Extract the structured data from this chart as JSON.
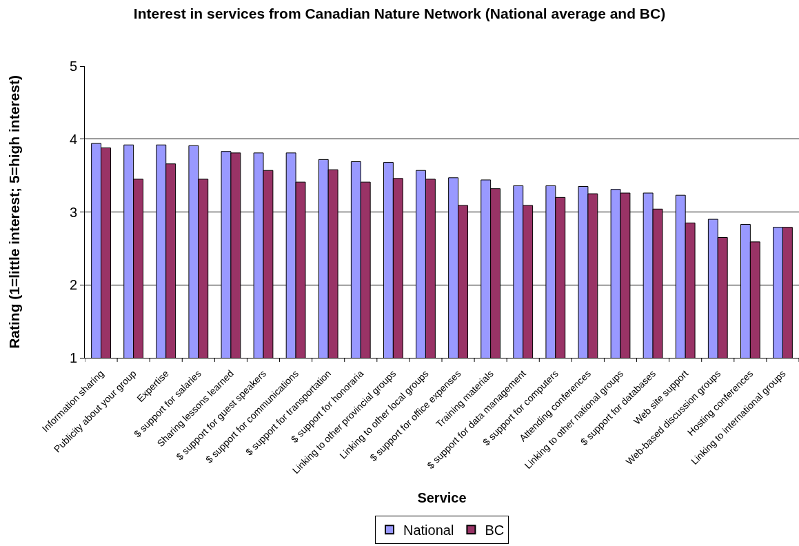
{
  "chart_data": {
    "type": "bar",
    "title": "Interest in services from Canadian Nature Network (National average and BC)",
    "xlabel": "Service",
    "ylabel": "Rating (1=little interest; 5=high interest)",
    "categories": [
      "Information sharing",
      "Publicity about your group",
      "Expertise",
      "$ support for salaries",
      "Sharing lessons learned",
      "$ support for guest speakers",
      "$ support for communications",
      "$ support for transportation",
      "$ support for honoraria",
      "Linking to other provincial groups",
      "Linking to other local groups",
      "$ support for office expenses",
      "Training materials",
      "$ support for data management",
      "$ support for computers",
      "Attending conferences",
      "Linking to other national groups",
      "$ support for databases",
      "Web site support",
      "Web-based discussion groups",
      "Hosting conferences",
      "Linking to international groups"
    ],
    "series": [
      {
        "name": "National",
        "color": "#9999ff",
        "values": [
          3.94,
          3.92,
          3.92,
          3.91,
          3.83,
          3.81,
          3.81,
          3.72,
          3.69,
          3.68,
          3.57,
          3.47,
          3.44,
          3.36,
          3.36,
          3.35,
          3.31,
          3.26,
          3.23,
          2.9,
          2.83,
          2.79
        ]
      },
      {
        "name": "BC",
        "color": "#993366",
        "values": [
          3.88,
          3.45,
          3.66,
          3.45,
          3.81,
          3.57,
          3.41,
          3.58,
          3.41,
          3.46,
          3.45,
          3.09,
          3.32,
          3.09,
          3.2,
          3.25,
          3.26,
          3.04,
          2.85,
          2.65,
          2.59,
          2.79
        ]
      }
    ],
    "ylim": [
      1,
      5
    ],
    "yticks": [
      1,
      2,
      3,
      4,
      5
    ],
    "grid": "y",
    "legend": "bottom"
  }
}
